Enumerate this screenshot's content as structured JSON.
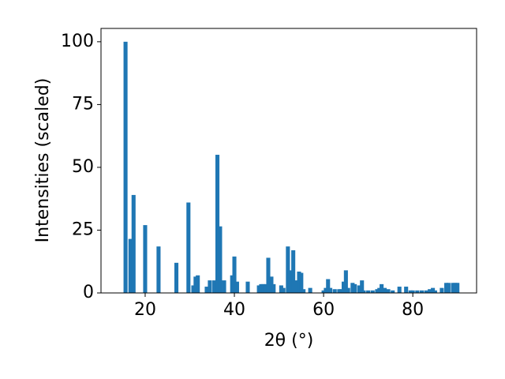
{
  "chart_data": {
    "type": "bar",
    "x_label": "2θ (°)",
    "y_label": "Intensities (scaled)",
    "color": "#1f77b4",
    "bar_width": 0.9,
    "x": [
      15.6,
      16.7,
      17.4,
      20,
      23,
      27,
      29.7,
      30.8,
      31.3,
      31.8,
      33.8,
      34.5,
      35.5,
      36.2,
      36.8,
      37.7,
      39.5,
      40,
      40.6,
      43,
      45.5,
      46,
      46.5,
      47,
      47.6,
      48.3,
      48.8,
      50.5,
      51,
      52,
      52.5,
      53.2,
      53.8,
      54.5,
      55,
      55.5,
      57,
      60,
      60.5,
      61,
      61.5,
      62.5,
      63.5,
      64,
      64.5,
      65,
      65.5,
      66.5,
      67,
      68,
      68.6,
      69,
      70,
      71,
      72,
      72.5,
      73,
      73.7,
      74.5,
      75.5,
      77,
      78.5,
      79.5,
      80,
      81,
      82,
      83,
      83.8,
      84.5,
      85,
      86.5,
      87.5,
      88,
      89,
      89.5,
      90
    ],
    "values": [
      100,
      21.5,
      39,
      27,
      18.5,
      12,
      36,
      3,
      6.5,
      7,
      2.5,
      5,
      5,
      55,
      26.5,
      5,
      7,
      14.5,
      4.5,
      4.5,
      3,
      3.5,
      3.5,
      3.5,
      14,
      6.5,
      3.5,
      3,
      2,
      18.5,
      9,
      17,
      5,
      8.5,
      8,
      1.5,
      2,
      1,
      2,
      5.5,
      2,
      1.5,
      1.5,
      1.5,
      4.5,
      9,
      2,
      4,
      3.5,
      3,
      5,
      1,
      1,
      1,
      1.5,
      2,
      3.5,
      2,
      1.5,
      1,
      2.5,
      2.5,
      1,
      1,
      1,
      1,
      1,
      1.5,
      2,
      1,
      2,
      4,
      4,
      4,
      4,
      4
    ],
    "xlim": [
      10.1,
      94.3
    ],
    "ylim": [
      0,
      105.3
    ],
    "xticks": [
      20,
      40,
      60,
      80
    ],
    "yticks": [
      0,
      25,
      50,
      75,
      100
    ]
  }
}
